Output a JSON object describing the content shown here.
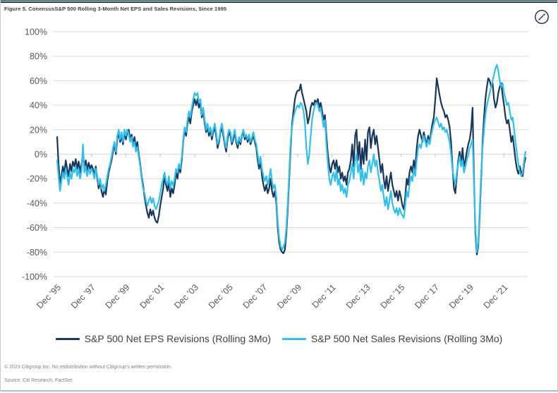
{
  "figure": {
    "title": "Figure 5. ConensusS&P 500 Rolling 3-Month Net EPS and Sales Revisions, Since 1995",
    "copyright": "© 2023 Citigroup Inc. No redistribution without Citigroup's written permission.",
    "source": "Source: Citi Research, FactSet"
  },
  "chart_data": {
    "type": "line",
    "title": "Consensus S&P 500 Rolling 3-Month Net EPS and Sales Revisions, Since 1995",
    "frequency": "monthly",
    "x_range": [
      "Dec 1995",
      "Mar 2023"
    ],
    "ylim": [
      -100,
      100
    ],
    "grid": true,
    "legend_position": "bottom",
    "y_tick_labels": [
      "100%",
      "80%",
      "60%",
      "40%",
      "20%",
      "0%",
      "-20%",
      "-40%",
      "-60%",
      "-80%",
      "-100%"
    ],
    "x_tick_labels": [
      "Dec ’95",
      "Dec ’97",
      "Dec ’99",
      "Dec ’01",
      "Dec ’03",
      "Dec ’05",
      "Dec ’07",
      "Dec ’09",
      "Dec ’11",
      "Dec ’13",
      "Dec ’15",
      "Dec ’17",
      "Dec ’19",
      "Dec ’21"
    ],
    "series": [
      {
        "name": "S&P 500 Net EPS Revisions (Rolling 3Mo)",
        "color": "#17375d",
        "values": [
          14,
          -8,
          -24,
          -18,
          -10,
          -16,
          -5,
          -12,
          -18,
          -8,
          -14,
          -6,
          -10,
          -4,
          -12,
          -6,
          -15,
          -8,
          -2,
          -10,
          -5,
          -13,
          -7,
          -12,
          -9,
          -12,
          -18,
          -10,
          -20,
          -28,
          -22,
          -30,
          -35,
          -28,
          -33,
          -22,
          -15,
          -10,
          -5,
          2,
          8,
          0,
          12,
          18,
          10,
          15,
          8,
          18,
          12,
          18,
          20,
          12,
          16,
          8,
          14,
          5,
          10,
          0,
          -8,
          -18,
          -25,
          -35,
          -42,
          -48,
          -52,
          -45,
          -50,
          -46,
          -52,
          -55,
          -56,
          -50,
          -42,
          -35,
          -28,
          -18,
          -25,
          -30,
          -22,
          -35,
          -28,
          -32,
          -25,
          -15,
          -20,
          -10,
          -15,
          -5,
          10,
          20,
          15,
          25,
          30,
          25,
          35,
          40,
          45,
          40,
          45,
          38,
          42,
          30,
          35,
          25,
          18,
          22,
          15,
          20,
          12,
          18,
          22,
          15,
          5,
          10,
          18,
          22,
          15,
          8,
          2,
          12,
          18,
          15,
          8,
          12,
          18,
          10,
          5,
          12,
          8,
          15,
          18,
          12,
          15,
          10,
          15,
          8,
          12,
          15,
          10,
          5,
          -5,
          -12,
          -5,
          -18,
          -25,
          -30,
          -25,
          -32,
          -28,
          -20,
          -30,
          -35,
          -30,
          -40,
          -60,
          -72,
          -78,
          -80,
          -81,
          -78,
          -65,
          -45,
          -20,
          5,
          25,
          35,
          45,
          50,
          52,
          52,
          57,
          50,
          45,
          40,
          35,
          25,
          30,
          38,
          42,
          40,
          44,
          42,
          45,
          38,
          42,
          35,
          28,
          32,
          15,
          0,
          -10,
          -15,
          -8,
          -5,
          -12,
          -5,
          -15,
          -10,
          -20,
          -15,
          -22,
          -18,
          -25,
          -15,
          -12,
          -5,
          8,
          -10,
          15,
          20,
          -5,
          10,
          -12,
          5,
          -8,
          12,
          -5,
          18,
          22,
          5,
          15,
          20,
          8,
          15,
          5,
          -5,
          -15,
          -8,
          -20,
          -28,
          -18,
          -30,
          -22,
          -15,
          -25,
          -30,
          -35,
          -30,
          -38,
          -30,
          -35,
          -42,
          -45,
          -35,
          -20,
          -25,
          -15,
          -10,
          -15,
          -5,
          -12,
          5,
          15,
          20,
          15,
          10,
          18,
          12,
          8,
          15,
          10,
          18,
          25,
          30,
          45,
          62,
          55,
          48,
          42,
          38,
          35,
          30,
          32,
          28,
          22,
          10,
          -10,
          -28,
          -32,
          -18,
          -5,
          2,
          -8,
          5,
          -10,
          -5,
          2,
          8,
          12,
          20,
          38,
          -20,
          -65,
          -82,
          -75,
          -50,
          -20,
          10,
          30,
          45,
          55,
          62,
          60,
          55,
          58,
          45,
          38,
          42,
          50,
          55,
          58,
          48,
          40,
          30,
          25,
          28,
          20,
          10,
          15,
          5,
          -5,
          -12,
          -16,
          -10,
          -15,
          -18,
          -8,
          -3
        ]
      },
      {
        "name": "S&P 500 Net Sales Revisions (Rolling 3Mo)",
        "color": "#2ec0f0",
        "values": [
          -5,
          -18,
          -30,
          -22,
          -15,
          -20,
          -12,
          -18,
          -25,
          -15,
          -20,
          -12,
          -15,
          -10,
          -18,
          -12,
          -20,
          -14,
          8,
          -15,
          -10,
          -18,
          -12,
          -16,
          -12,
          -15,
          -20,
          -12,
          -18,
          -25,
          -20,
          -28,
          -25,
          -30,
          -25,
          -18,
          -12,
          -8,
          -2,
          5,
          10,
          2,
          15,
          20,
          12,
          18,
          10,
          20,
          15,
          20,
          16,
          10,
          14,
          6,
          10,
          2,
          6,
          -2,
          -10,
          -20,
          -28,
          -32,
          -38,
          -42,
          -38,
          -35,
          -40,
          -36,
          -42,
          -45,
          -42,
          -38,
          -32,
          -25,
          -20,
          -15,
          -22,
          -25,
          -18,
          -28,
          -22,
          -26,
          -20,
          -12,
          -15,
          -8,
          -12,
          -2,
          12,
          22,
          18,
          28,
          35,
          30,
          38,
          45,
          50,
          48,
          50,
          42,
          45,
          32,
          38,
          28,
          20,
          25,
          18,
          22,
          15,
          20,
          25,
          18,
          8,
          12,
          20,
          25,
          18,
          10,
          5,
          15,
          20,
          18,
          10,
          15,
          20,
          12,
          8,
          14,
          10,
          16,
          20,
          14,
          16,
          12,
          16,
          10,
          14,
          18,
          12,
          8,
          0,
          -8,
          -2,
          -12,
          -18,
          -22,
          -18,
          -25,
          -20,
          -12,
          -22,
          -28,
          -25,
          -35,
          -55,
          -68,
          -75,
          -78,
          -76,
          -72,
          -60,
          -40,
          -15,
          10,
          22,
          30,
          35,
          38,
          40,
          38,
          42,
          40,
          35,
          25,
          5,
          -8,
          0,
          15,
          28,
          35,
          40,
          42,
          40,
          35,
          38,
          30,
          22,
          28,
          8,
          -8,
          -20,
          -25,
          -18,
          -15,
          -22,
          -12,
          -25,
          -20,
          -30,
          -25,
          -32,
          -28,
          -35,
          -25,
          -22,
          -15,
          -8,
          -20,
          -5,
          0,
          -15,
          -8,
          -22,
          -12,
          -25,
          -15,
          -20,
          -10,
          -5,
          -15,
          -8,
          0,
          -10,
          -5,
          -15,
          -22,
          -30,
          -25,
          -35,
          -42,
          -35,
          -45,
          -38,
          -30,
          -40,
          -45,
          -48,
          -44,
          -50,
          -44,
          -48,
          -50,
          -52,
          -42,
          -30,
          -35,
          -25,
          -18,
          -22,
          -12,
          -18,
          -5,
          5,
          8,
          5,
          12,
          15,
          10,
          6,
          12,
          8,
          15,
          20,
          25,
          28,
          30,
          26,
          22,
          25,
          20,
          22,
          18,
          20,
          15,
          10,
          0,
          -12,
          -20,
          -25,
          -15,
          -8,
          -2,
          -10,
          -5,
          -15,
          -10,
          -5,
          0,
          5,
          8,
          12,
          -25,
          -60,
          -80,
          -72,
          -45,
          -15,
          5,
          20,
          32,
          40,
          45,
          50,
          55,
          60,
          65,
          70,
          73,
          68,
          60,
          55,
          58,
          50,
          45,
          40,
          42,
          35,
          28,
          30,
          20,
          10,
          0,
          -8,
          -15,
          -18,
          -15,
          -5,
          2
        ]
      }
    ]
  }
}
